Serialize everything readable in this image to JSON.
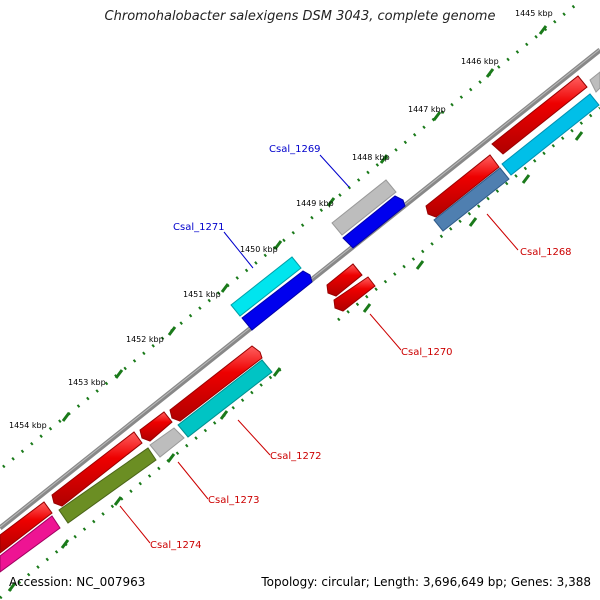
{
  "title": "Chromohalobacter salexigens DSM 3043, complete genome",
  "accession": "Accession: NC_007963",
  "summary": "Topology: circular; Length: 3,696,649 bp; Genes: 3,388",
  "kbp_labels": [
    "1445 kbp",
    "1446 kbp",
    "1447 kbp",
    "1448 kbp",
    "1449 kbp",
    "1450 kbp",
    "1451 kbp",
    "1452 kbp",
    "1453 kbp",
    "1454 kbp"
  ],
  "gene_labels": {
    "csal_1268": "Csal_1268",
    "csal_1269": "Csal_1269",
    "csal_1270": "Csal_1270",
    "csal_1271": "Csal_1271",
    "csal_1272": "Csal_1272",
    "csal_1273": "Csal_1273",
    "csal_1274": "Csal_1274"
  },
  "colors": {
    "backbone": "#808080",
    "tick": "#1a7a1a",
    "cds_red": "#ee0000",
    "cds_grey": "#bdbdbd",
    "cds_blue": "#0000ee",
    "cds_cyan": "#00e5ee",
    "cds_steel": "#4f7fb0",
    "cds_deepsky": "#00bfe8",
    "cds_teal": "#00c4c4",
    "cds_olive": "#6b8e23",
    "cds_pink": "#ee1493",
    "label_blue": "#0000cc",
    "label_red": "#cc0000"
  }
}
